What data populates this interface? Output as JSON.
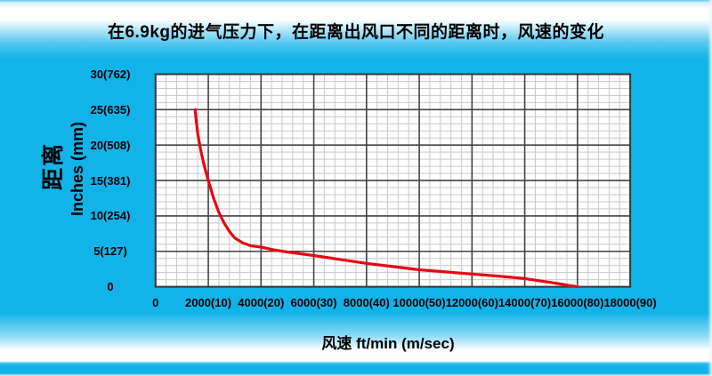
{
  "title": "在6.9kg的进气压力下，在距离出风口不同的距离时，风速的变化",
  "colors": {
    "background_cyan": "#12b3e9",
    "plot_background": "#ffffff",
    "grid_minor": "#c9c9c9",
    "grid_major": "#474140",
    "plot_border": "#3a3534",
    "curve_red": "#e60614",
    "text": "#000000"
  },
  "chart_data": {
    "type": "line",
    "title": "在6.9kg的进气压力下，在距离出风口不同的距离时，风速的变化",
    "xlabel": "风速 ft/min (m/sec)",
    "ylabel_cn": "距离",
    "ylabel": "Inches (mm)",
    "xlim": [
      0,
      18000
    ],
    "ylim": [
      0,
      30
    ],
    "x_major_step": 2000,
    "x_minor_step": 400,
    "y_major_step": 5,
    "y_minor_step": 1,
    "grid": true,
    "legend_position": "none",
    "x_tick_labels": [
      "0",
      "2000(10)",
      "4000(20)",
      "6000(30)",
      "8000(40)",
      "10000(50)",
      "12000(60)",
      "14000(70)",
      "16000(80)",
      "18000(90)"
    ],
    "y_tick_labels": [
      "0",
      "5(127)",
      "10(254)",
      "15(381)",
      "20(508)",
      "25(635)",
      "30(762)"
    ],
    "series": [
      {
        "name": "velocity-vs-distance",
        "color": "#e60614",
        "points": [
          [
            1500,
            25
          ],
          [
            1550,
            23.2
          ],
          [
            1600,
            21.6
          ],
          [
            1700,
            19.5
          ],
          [
            1800,
            17.8
          ],
          [
            1900,
            16.3
          ],
          [
            2000,
            15
          ],
          [
            2200,
            12.5
          ],
          [
            2400,
            10.5
          ],
          [
            2600,
            9
          ],
          [
            2800,
            7.8
          ],
          [
            3000,
            6.9
          ],
          [
            3300,
            6.2
          ],
          [
            3600,
            5.8
          ],
          [
            4000,
            5.6
          ],
          [
            4500,
            5.2
          ],
          [
            5000,
            4.9
          ],
          [
            6000,
            4.4
          ],
          [
            7000,
            3.85
          ],
          [
            8000,
            3.3
          ],
          [
            9000,
            2.85
          ],
          [
            10000,
            2.4
          ],
          [
            11000,
            2.1
          ],
          [
            12000,
            1.8
          ],
          [
            13000,
            1.5
          ],
          [
            14000,
            1.15
          ],
          [
            15000,
            0.6
          ],
          [
            16000,
            0
          ]
        ]
      }
    ]
  }
}
